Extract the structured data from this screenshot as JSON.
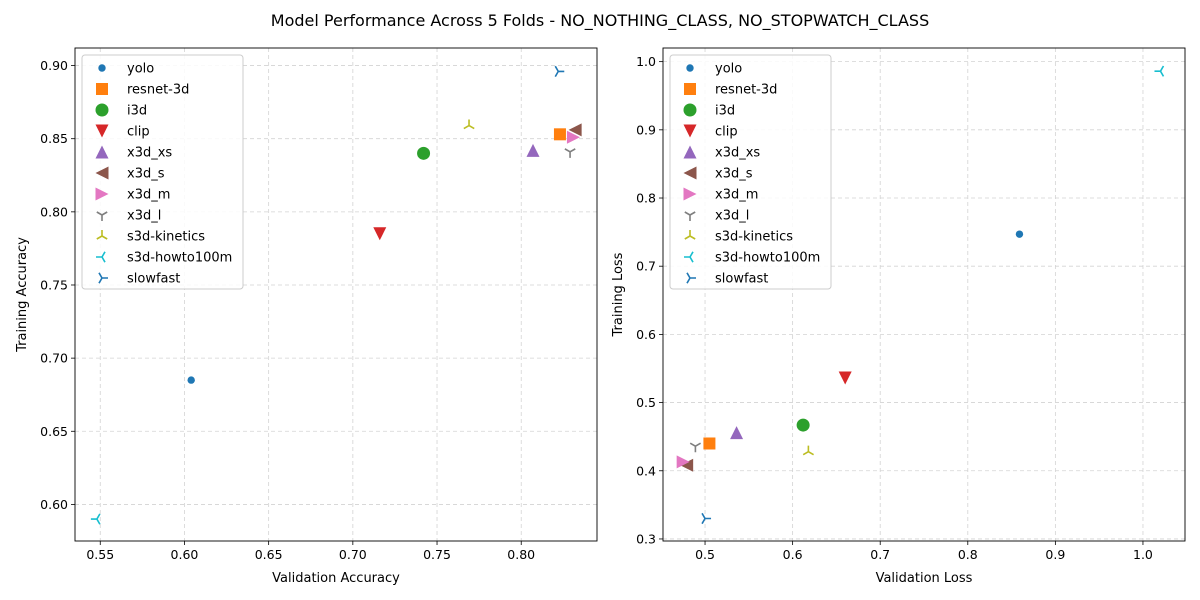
{
  "figure": {
    "suptitle": "Model Performance Across 5 Folds - NO_NOTHING_CLASS, NO_STOPWATCH_CLASS"
  },
  "models": [
    {
      "name": "yolo",
      "color": "#1f77b4",
      "marker": "circle-small"
    },
    {
      "name": "resnet-3d",
      "color": "#ff7f0e",
      "marker": "square"
    },
    {
      "name": "i3d",
      "color": "#2ca02c",
      "marker": "circle"
    },
    {
      "name": "clip",
      "color": "#d62728",
      "marker": "triangle-down"
    },
    {
      "name": "x3d_xs",
      "color": "#9467bd",
      "marker": "triangle-up"
    },
    {
      "name": "x3d_s",
      "color": "#8c564b",
      "marker": "triangle-left"
    },
    {
      "name": "x3d_m",
      "color": "#e377c2",
      "marker": "triangle-right"
    },
    {
      "name": "x3d_l",
      "color": "#7f7f7f",
      "marker": "tri-down"
    },
    {
      "name": "s3d-kinetics",
      "color": "#bcbd22",
      "marker": "tri-up"
    },
    {
      "name": "s3d-howto100m",
      "color": "#17becf",
      "marker": "tri-left"
    },
    {
      "name": "slowfast",
      "color": "#1f77b4",
      "marker": "tri-right"
    }
  ],
  "chart_data": [
    {
      "type": "scatter",
      "title": "",
      "xlabel": "Validation Accuracy",
      "ylabel": "Training Accuracy",
      "xlim": [
        0.535,
        0.845
      ],
      "ylim": [
        0.575,
        0.912
      ],
      "xticks": [
        0.55,
        0.6,
        0.65,
        0.7,
        0.75,
        0.8
      ],
      "yticks": [
        0.6,
        0.65,
        0.7,
        0.75,
        0.8,
        0.85,
        0.9
      ],
      "tick_decimals": 2,
      "grid": true,
      "legend": "upper-left",
      "series": [
        {
          "name": "yolo",
          "x": 0.604,
          "y": 0.685
        },
        {
          "name": "resnet-3d",
          "x": 0.823,
          "y": 0.853
        },
        {
          "name": "i3d",
          "x": 0.742,
          "y": 0.84
        },
        {
          "name": "clip",
          "x": 0.716,
          "y": 0.785
        },
        {
          "name": "x3d_xs",
          "x": 0.807,
          "y": 0.842
        },
        {
          "name": "x3d_s",
          "x": 0.832,
          "y": 0.856
        },
        {
          "name": "x3d_m",
          "x": 0.831,
          "y": 0.851
        },
        {
          "name": "x3d_l",
          "x": 0.829,
          "y": 0.841
        },
        {
          "name": "s3d-kinetics",
          "x": 0.769,
          "y": 0.859
        },
        {
          "name": "s3d-howto100m",
          "x": 0.548,
          "y": 0.59
        },
        {
          "name": "slowfast",
          "x": 0.822,
          "y": 0.896
        }
      ]
    },
    {
      "type": "scatter",
      "title": "",
      "xlabel": "Validation Loss",
      "ylabel": "Training Loss",
      "xlim": [
        0.452,
        1.048
      ],
      "ylim": [
        0.297,
        1.02
      ],
      "xticks": [
        0.5,
        0.6,
        0.7,
        0.8,
        0.9,
        1.0
      ],
      "yticks": [
        0.3,
        0.4,
        0.5,
        0.6,
        0.7,
        0.8,
        0.9,
        1.0
      ],
      "tick_decimals": 1,
      "grid": true,
      "legend": "upper-left",
      "series": [
        {
          "name": "yolo",
          "x": 0.859,
          "y": 0.747
        },
        {
          "name": "resnet-3d",
          "x": 0.505,
          "y": 0.44
        },
        {
          "name": "i3d",
          "x": 0.612,
          "y": 0.467
        },
        {
          "name": "clip",
          "x": 0.66,
          "y": 0.536
        },
        {
          "name": "x3d_xs",
          "x": 0.536,
          "y": 0.456
        },
        {
          "name": "x3d_s",
          "x": 0.479,
          "y": 0.408
        },
        {
          "name": "x3d_m",
          "x": 0.475,
          "y": 0.413
        },
        {
          "name": "x3d_l",
          "x": 0.489,
          "y": 0.436
        },
        {
          "name": "s3d-kinetics",
          "x": 0.618,
          "y": 0.428
        },
        {
          "name": "s3d-howto100m",
          "x": 1.02,
          "y": 0.986
        },
        {
          "name": "slowfast",
          "x": 0.5,
          "y": 0.33
        }
      ]
    }
  ]
}
